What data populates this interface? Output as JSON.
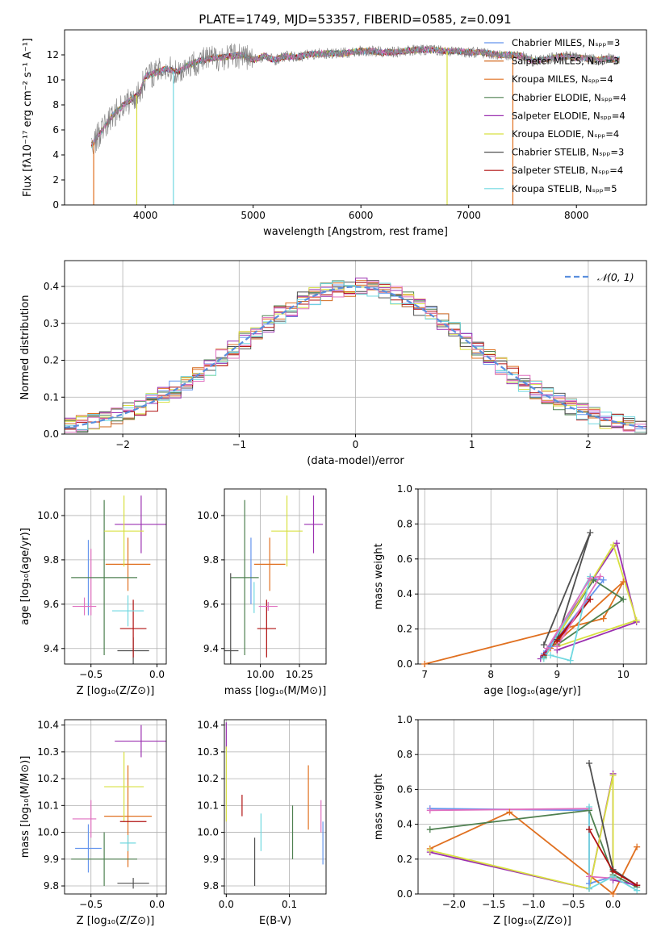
{
  "figure_title": "PLATE=1749, MJD=53357, FIBERID=0585, z=0.091",
  "colors": [
    "#6495ED",
    "#D2691E",
    "#E07020",
    "#4E8050",
    "#9B30B0",
    "#D8E040",
    "#505050",
    "#B01010",
    "#70D8E0",
    "#E070C0",
    "#808080"
  ],
  "chart_data": [
    {
      "type": "line",
      "panel": "spectrum",
      "title": "PLATE=1749, MJD=53357, FIBERID=0585, z=0.091",
      "xlabel": "wavelength [Angstrom, rest frame]",
      "ylabel": "Flux [fλ10⁻¹⁷ erg cm⁻² s⁻¹ A⁻¹]",
      "xlim": [
        3250,
        8650
      ],
      "ylim": [
        0,
        14
      ],
      "xticks": [
        "4000",
        "5000",
        "6000",
        "7000",
        "8000"
      ],
      "yticks": [
        "0",
        "2",
        "4",
        "6",
        "8",
        "10",
        "12"
      ],
      "legend_position": "right",
      "legend": [
        "Chabrier MILES, Nₛₚₚ=3",
        "Salpeter MILES, Nₛₚₚ=3",
        "Kroupa MILES, Nₛₚₚ=4",
        "Chabrier ELODIE, Nₛₚₚ=4",
        "Salpeter ELODIE, Nₛₚₚ=4",
        "Kroupa ELODIE, Nₛₚₚ=4",
        "Chabrier STELIB, Nₛₚₚ=3",
        "Salpeter STELIB, Nₛₚₚ=4",
        "Kroupa STELIB, Nₛₚₚ=5"
      ],
      "data_color": "#808080",
      "continuum": {
        "x": [
          3500,
          3600,
          3700,
          3800,
          3900,
          3950,
          4000,
          4100,
          4200,
          4300,
          4400,
          4500,
          4600,
          4700,
          4800,
          4900,
          5000,
          5100,
          5200,
          5300,
          5400,
          5500,
          5600,
          5700,
          5800,
          5900,
          6000,
          6100,
          6200,
          6300,
          6400,
          6500,
          6600,
          6700,
          6800,
          6900,
          7000,
          7100,
          7200,
          7300,
          7400,
          7500,
          7600,
          7700,
          7800,
          7900,
          8000,
          8100,
          8200,
          8300,
          8400
        ],
        "y": [
          4.8,
          6.0,
          7.2,
          8.0,
          8.6,
          9.0,
          10.3,
          10.6,
          10.9,
          10.6,
          11.2,
          11.5,
          11.7,
          11.8,
          11.9,
          12.0,
          11.6,
          11.9,
          11.6,
          11.9,
          11.8,
          12.0,
          12.1,
          12.1,
          12.1,
          12.2,
          12.3,
          12.3,
          12.2,
          12.2,
          12.3,
          12.4,
          12.4,
          12.4,
          12.3,
          12.3,
          12.2,
          12.2,
          12.1,
          12.0,
          12.0,
          11.9,
          11.5,
          11.6,
          11.8,
          11.9,
          11.8,
          11.7,
          11.6,
          11.7,
          11.6
        ]
      },
      "spikes": [
        {
          "x": 3520,
          "y": 0,
          "color": "#E07020"
        },
        {
          "x": 3920,
          "y": 0,
          "color": "#D8E040"
        },
        {
          "x": 4260,
          "y": 0,
          "color": "#70D8E0"
        },
        {
          "x": 6800,
          "y": 0,
          "color": "#D8E040"
        },
        {
          "x": 7410,
          "y": 0,
          "color": "#E07020"
        }
      ]
    },
    {
      "type": "bar",
      "panel": "residual-histogram",
      "xlabel": "(data-model)/error",
      "ylabel": "Normed distribution",
      "xlim": [
        -2.5,
        2.5
      ],
      "ylim": [
        0,
        0.47
      ],
      "xticks": [
        "−2",
        "−1",
        "0",
        "1",
        "2"
      ],
      "yticks": [
        "0.0",
        "0.1",
        "0.2",
        "0.3",
        "0.4"
      ],
      "legend": [
        "𝒩(0, 1)"
      ],
      "legend_position": "top-right",
      "gaussian": {
        "mean": 0,
        "sigma": 1,
        "color": "#5A8FDD"
      },
      "bin_width": 0.1
    },
    {
      "type": "scatter",
      "panel": "age-vs-Z",
      "xlabel": "Z [log₁₀(Z/Z⊙)]",
      "ylabel": "age  [log₁₀(age/yr)]",
      "xlim": [
        -0.7,
        0.07
      ],
      "ylim": [
        9.33,
        10.12
      ],
      "xticks": [
        "−0.5",
        "0.0"
      ],
      "yticks": [
        "9.4",
        "9.6",
        "9.8",
        "10.0"
      ],
      "points": [
        {
          "x": -0.52,
          "xerr": 0.0,
          "y": 9.72,
          "yerr": 0.17,
          "color": "#6495ED"
        },
        {
          "x": -0.5,
          "xerr": 0.0,
          "y": 9.7,
          "yerr": 0.15,
          "color": "#E070C0"
        },
        {
          "x": -0.22,
          "xerr": 0.17,
          "y": 9.78,
          "yerr": 0.12,
          "color": "#E07020"
        },
        {
          "x": -0.4,
          "xerr": 0.25,
          "y": 9.72,
          "yerr": 0.35,
          "color": "#4E8050"
        },
        {
          "x": -0.12,
          "xerr": 0.2,
          "y": 9.96,
          "yerr": 0.13,
          "color": "#9B30B0"
        },
        {
          "x": -0.25,
          "xerr": 0.15,
          "y": 9.93,
          "yerr": 0.16,
          "color": "#D8E040"
        },
        {
          "x": -0.18,
          "xerr": 0.12,
          "y": 9.39,
          "yerr": 0.06,
          "color": "#505050"
        },
        {
          "x": -0.18,
          "xerr": 0.1,
          "y": 9.49,
          "yerr": 0.13,
          "color": "#B01010"
        },
        {
          "x": -0.22,
          "xerr": 0.12,
          "y": 9.57,
          "yerr": 0.07,
          "color": "#70D8E0"
        },
        {
          "x": -0.55,
          "xerr": 0.09,
          "y": 9.59,
          "yerr": 0.04,
          "color": "#E070C0"
        }
      ]
    },
    {
      "type": "scatter",
      "panel": "age-vs-mass",
      "xlabel": "mass [log₁₀(M/M⊙)]",
      "ylabel": "",
      "xlim": [
        9.77,
        10.42
      ],
      "ylim": [
        9.33,
        10.12
      ],
      "xticks": [
        "10.00",
        "10.25"
      ],
      "yticks": [
        "9.4",
        "9.6",
        "9.8",
        "10.0"
      ],
      "points": [
        {
          "x": 9.94,
          "xerr": 0.0,
          "y": 9.75,
          "yerr": 0.15,
          "color": "#6495ED"
        },
        {
          "x": 10.06,
          "xerr": 0.1,
          "y": 9.78,
          "yerr": 0.12,
          "color": "#E07020"
        },
        {
          "x": 9.9,
          "xerr": 0.09,
          "y": 9.72,
          "yerr": 0.35,
          "color": "#4E8050"
        },
        {
          "x": 10.34,
          "xerr": 0.06,
          "y": 9.96,
          "yerr": 0.13,
          "color": "#9B30B0"
        },
        {
          "x": 10.17,
          "xerr": 0.1,
          "y": 9.93,
          "yerr": 0.16,
          "color": "#D8E040"
        },
        {
          "x": 9.81,
          "xerr": 0.05,
          "y": 9.39,
          "yerr": 0.35,
          "color": "#505050"
        },
        {
          "x": 10.04,
          "xerr": 0.06,
          "y": 9.49,
          "yerr": 0.13,
          "color": "#B01010"
        },
        {
          "x": 9.96,
          "xerr": 0.0,
          "y": 9.63,
          "yerr": 0.07,
          "color": "#70D8E0"
        },
        {
          "x": 10.05,
          "xerr": 0.06,
          "y": 9.59,
          "yerr": 0.02,
          "color": "#E070C0"
        }
      ]
    },
    {
      "type": "line",
      "panel": "mass-weight-vs-age",
      "xlabel": "age  [log₁₀(age/yr)]",
      "ylabel": "mass weight",
      "xlim": [
        6.9,
        10.35
      ],
      "ylim": [
        0,
        1.0
      ],
      "xticks": [
        "7",
        "8",
        "9",
        "10"
      ],
      "yticks": [
        "0.0",
        "0.2",
        "0.4",
        "0.6",
        "0.8",
        "1.0"
      ],
      "series": [
        {
          "color": "#E07020",
          "x": [
            7.0,
            9.7,
            10.0,
            8.9
          ],
          "y": [
            0.0,
            0.26,
            0.47,
            0.09
          ]
        },
        {
          "color": "#6495ED",
          "x": [
            8.8,
            9.5,
            9.7,
            8.9
          ],
          "y": [
            0.06,
            0.49,
            0.48,
            0.1
          ]
        },
        {
          "color": "#4E8050",
          "x": [
            8.8,
            9.55,
            10.0,
            9.0
          ],
          "y": [
            0.04,
            0.48,
            0.37,
            0.11
          ]
        },
        {
          "color": "#9B30B0",
          "x": [
            8.75,
            9.9,
            10.2,
            9.0
          ],
          "y": [
            0.03,
            0.69,
            0.24,
            0.08
          ]
        },
        {
          "color": "#D8E040",
          "x": [
            8.8,
            9.85,
            10.2,
            9.0
          ],
          "y": [
            0.03,
            0.68,
            0.25,
            0.1
          ]
        },
        {
          "color": "#505050",
          "x": [
            8.8,
            9.5,
            9.0
          ],
          "y": [
            0.11,
            0.75,
            0.14
          ]
        },
        {
          "color": "#B01010",
          "x": [
            8.8,
            9.5,
            9.0
          ],
          "y": [
            0.05,
            0.37,
            0.13
          ]
        },
        {
          "color": "#70D8E0",
          "x": [
            8.9,
            9.2,
            9.5,
            8.8
          ],
          "y": [
            0.05,
            0.02,
            0.5,
            0.03
          ]
        },
        {
          "color": "#E070C0",
          "x": [
            8.85,
            9.5,
            9.65,
            9.0
          ],
          "y": [
            0.09,
            0.49,
            0.5,
            0.1
          ]
        }
      ]
    },
    {
      "type": "scatter",
      "panel": "mass-vs-Z",
      "xlabel": "Z [log₁₀(Z/Z⊙)]",
      "ylabel": "mass [log₁₀(M/M⊙)]",
      "xlim": [
        -0.7,
        0.07
      ],
      "ylim": [
        9.77,
        10.42
      ],
      "xticks": [
        "−0.5",
        "0.0"
      ],
      "yticks": [
        "9.8",
        "9.9",
        "10.0",
        "10.1",
        "10.2",
        "10.3",
        "10.4"
      ],
      "points": [
        {
          "x": -0.52,
          "xerr": 0.1,
          "y": 9.94,
          "yerr": 0.09,
          "color": "#6495ED"
        },
        {
          "x": -0.5,
          "xerr": 0.0,
          "y": 10.05,
          "yerr": 0.07,
          "color": "#E070C0"
        },
        {
          "x": -0.22,
          "xerr": 0.18,
          "y": 10.06,
          "yerr": 0.19,
          "color": "#E07020"
        },
        {
          "x": -0.4,
          "xerr": 0.25,
          "y": 9.9,
          "yerr": 0.1,
          "color": "#4E8050"
        },
        {
          "x": -0.12,
          "xerr": 0.2,
          "y": 10.34,
          "yerr": 0.06,
          "color": "#9B30B0"
        },
        {
          "x": -0.25,
          "xerr": 0.15,
          "y": 10.17,
          "yerr": 0.13,
          "color": "#D8E040"
        },
        {
          "x": -0.18,
          "xerr": 0.12,
          "y": 9.81,
          "yerr": 0.02,
          "color": "#505050"
        },
        {
          "x": -0.18,
          "xerr": 0.1,
          "y": 10.04,
          "yerr": 0.0,
          "color": "#B01010"
        },
        {
          "x": -0.22,
          "xerr": 0.06,
          "y": 9.96,
          "yerr": 0.03,
          "color": "#70D8E0"
        },
        {
          "x": -0.55,
          "xerr": 0.09,
          "y": 10.05,
          "yerr": 0.0,
          "color": "#E070C0"
        }
      ]
    },
    {
      "type": "scatter",
      "panel": "mass-vs-ebv",
      "xlabel": "E(B-V)",
      "ylabel": "",
      "xlim": [
        -0.003,
        0.158
      ],
      "ylim": [
        9.77,
        10.42
      ],
      "xticks": [
        "0.0",
        "0.1"
      ],
      "yticks": [
        "9.8",
        "9.9",
        "10.0",
        "10.1",
        "10.2",
        "10.3",
        "10.4"
      ],
      "points": [
        {
          "x": 0.0,
          "y": 10.36,
          "yerr": 0.05,
          "color": "#9B30B0"
        },
        {
          "x": 0.0,
          "y": 10.18,
          "yerr": 0.14,
          "color": "#D8E040"
        },
        {
          "x": 0.025,
          "y": 10.1,
          "yerr": 0.04,
          "color": "#B01010"
        },
        {
          "x": 0.045,
          "y": 9.89,
          "yerr": 0.09,
          "color": "#505050"
        },
        {
          "x": 0.055,
          "y": 10.0,
          "yerr": 0.07,
          "color": "#70D8E0"
        },
        {
          "x": 0.105,
          "y": 10.0,
          "yerr": 0.1,
          "color": "#4E8050"
        },
        {
          "x": 0.13,
          "y": 10.13,
          "yerr": 0.12,
          "color": "#E07020"
        },
        {
          "x": 0.15,
          "y": 10.06,
          "yerr": 0.06,
          "color": "#E070C0"
        },
        {
          "x": 0.153,
          "y": 9.96,
          "yerr": 0.08,
          "color": "#6495ED"
        }
      ]
    },
    {
      "type": "line",
      "panel": "mass-weight-vs-Z",
      "xlabel": "Z [log₁₀(Z/Z⊙)]",
      "ylabel": "mass weight",
      "xlim": [
        -2.45,
        0.42
      ],
      "ylim": [
        0,
        1.0
      ],
      "xticks": [
        "−2.0",
        "−1.5",
        "−1.0",
        "−0.5",
        "0.0"
      ],
      "yticks": [
        "0.0",
        "0.2",
        "0.4",
        "0.6",
        "0.8",
        "1.0"
      ],
      "series": [
        {
          "color": "#6495ED",
          "x": [
            -2.3,
            -0.3,
            -0.3,
            0.0
          ],
          "y": [
            0.49,
            0.48,
            0.06,
            0.1
          ]
        },
        {
          "color": "#E070C0",
          "x": [
            -2.3,
            -0.3,
            -0.3,
            0.0
          ],
          "y": [
            0.48,
            0.49,
            0.1,
            0.09
          ]
        },
        {
          "color": "#E07020",
          "x": [
            -2.3,
            -1.3,
            0.0,
            0.3
          ],
          "y": [
            0.26,
            0.47,
            0.0,
            0.27
          ]
        },
        {
          "color": "#4E8050",
          "x": [
            -2.3,
            -0.3,
            0.0,
            0.3
          ],
          "y": [
            0.37,
            0.48,
            0.11,
            0.04
          ]
        },
        {
          "color": "#9B30B0",
          "x": [
            -2.3,
            -0.3,
            0.0,
            0.0,
            0.3
          ],
          "y": [
            0.24,
            0.03,
            0.69,
            0.08,
            0.05
          ]
        },
        {
          "color": "#D8E040",
          "x": [
            -2.3,
            -0.3,
            0.0,
            0.0
          ],
          "y": [
            0.25,
            0.03,
            0.68,
            0.1
          ]
        },
        {
          "color": "#505050",
          "x": [
            -0.3,
            0.0,
            0.3
          ],
          "y": [
            0.75,
            0.14,
            0.05
          ]
        },
        {
          "color": "#B01010",
          "x": [
            -0.3,
            0.0,
            0.3
          ],
          "y": [
            0.37,
            0.13,
            0.05
          ]
        },
        {
          "color": "#70D8E0",
          "x": [
            -0.3,
            -0.3,
            0.0,
            0.3
          ],
          "y": [
            0.5,
            0.03,
            0.1,
            0.02
          ]
        }
      ]
    }
  ]
}
